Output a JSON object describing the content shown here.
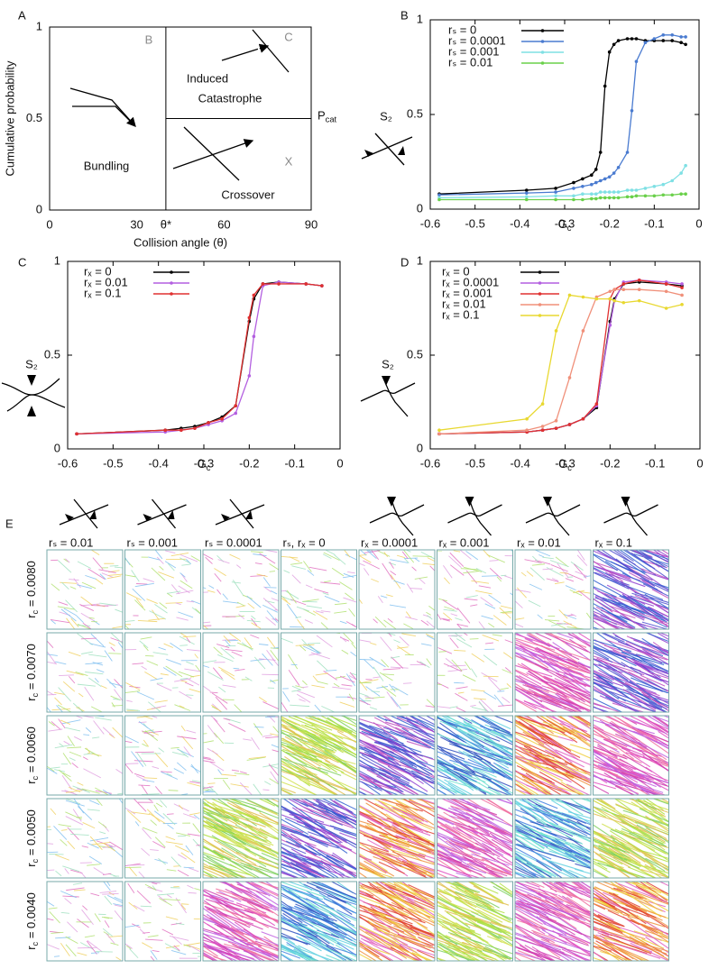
{
  "chart_data": [
    {
      "type": "schematic",
      "panel": "A",
      "xlabel": "Collision angle (θ)",
      "ylabel": "Cumulative probability",
      "xlim": [
        0,
        90
      ],
      "ylim": [
        0,
        1
      ],
      "xticks": [
        0,
        30,
        {
          "value": 40,
          "label": "θ*"
        },
        60,
        90
      ],
      "yticks": [
        0,
        0.5,
        1
      ],
      "regions": [
        {
          "letter": "B",
          "label": [
            "Bundling"
          ]
        },
        {
          "letter": "C",
          "label": [
            "Induced",
            "Catastrophe"
          ]
        },
        {
          "letter": "X",
          "label": [
            "Crossover"
          ]
        }
      ],
      "annotation": {
        "base": "P",
        "sub": "cat"
      }
    },
    {
      "type": "line",
      "panel": "B",
      "xlabel": {
        "base": "G",
        "sub": "c"
      },
      "ylabel": "S₂",
      "xlim": [
        -0.6,
        0
      ],
      "ylim": [
        0,
        1
      ],
      "xticks": [
        -0.6,
        -0.5,
        -0.4,
        -0.3,
        -0.2,
        -0.1,
        0
      ],
      "yticks": [
        0,
        0.5,
        1
      ],
      "x": [
        -0.58,
        -0.385,
        -0.32,
        -0.28,
        -0.26,
        -0.24,
        -0.23,
        -0.22,
        -0.21,
        -0.2,
        -0.19,
        -0.18,
        -0.16,
        -0.15,
        -0.14,
        -0.12,
        -0.1,
        -0.08,
        -0.06,
        -0.04,
        -0.03
      ],
      "series": [
        {
          "name": "rₛ = 0",
          "color": "#000000",
          "values": [
            0.08,
            0.1,
            0.11,
            0.14,
            0.16,
            0.18,
            0.21,
            0.3,
            0.65,
            0.83,
            0.87,
            0.89,
            0.9,
            0.9,
            0.9,
            0.89,
            0.89,
            0.89,
            0.89,
            0.88,
            0.87
          ]
        },
        {
          "name": "rₛ = 0.0001",
          "color": "#4a7bd0",
          "values": [
            0.075,
            0.085,
            0.09,
            0.11,
            0.12,
            0.13,
            0.14,
            0.15,
            0.16,
            0.17,
            0.19,
            0.22,
            0.3,
            0.52,
            0.78,
            0.88,
            0.9,
            0.92,
            0.92,
            0.91,
            0.91
          ]
        },
        {
          "name": "rₛ = 0.001",
          "color": "#7fe0e4",
          "values": [
            0.06,
            0.065,
            0.07,
            0.07,
            0.08,
            0.08,
            0.08,
            0.09,
            0.09,
            0.09,
            0.09,
            0.09,
            0.1,
            0.1,
            0.1,
            0.11,
            0.12,
            0.13,
            0.15,
            0.19,
            0.23
          ]
        },
        {
          "name": "rₛ = 0.01",
          "color": "#6ad04a",
          "values": [
            0.05,
            0.05,
            0.05,
            0.05,
            0.05,
            0.055,
            0.055,
            0.06,
            0.06,
            0.06,
            0.06,
            0.06,
            0.065,
            0.065,
            0.07,
            0.07,
            0.07,
            0.075,
            0.075,
            0.08,
            0.08
          ]
        }
      ]
    },
    {
      "type": "line",
      "panel": "C",
      "xlabel": {
        "base": "G",
        "sub": "c"
      },
      "ylabel": "S₂",
      "xlim": [
        -0.6,
        0
      ],
      "ylim": [
        0,
        1
      ],
      "xticks": [
        -0.6,
        -0.5,
        -0.4,
        -0.3,
        -0.2,
        -0.1,
        0
      ],
      "yticks": [
        0,
        0.5,
        1
      ],
      "x": [
        -0.58,
        -0.385,
        -0.35,
        -0.32,
        -0.29,
        -0.26,
        -0.23,
        -0.2,
        -0.19,
        -0.17,
        -0.135,
        -0.075,
        -0.04
      ],
      "series": [
        {
          "name": "rₓ = 0",
          "color": "#000000",
          "values": [
            0.08,
            0.1,
            0.11,
            0.12,
            0.14,
            0.17,
            0.23,
            0.68,
            0.8,
            0.88,
            0.89,
            0.88,
            0.87
          ]
        },
        {
          "name": "rₓ = 0.01",
          "color": "#b35fe0",
          "values": [
            0.08,
            0.09,
            0.1,
            0.11,
            0.13,
            0.15,
            0.19,
            0.39,
            0.6,
            0.87,
            0.89,
            0.88,
            0.87
          ]
        },
        {
          "name": "rₓ = 0.1",
          "color": "#e03030",
          "values": [
            0.08,
            0.1,
            0.1,
            0.11,
            0.14,
            0.16,
            0.23,
            0.7,
            0.82,
            0.88,
            0.88,
            0.88,
            0.87
          ]
        }
      ]
    },
    {
      "type": "line",
      "panel": "D",
      "xlabel": {
        "base": "G",
        "sub": "c"
      },
      "ylabel": "S₂",
      "xlim": [
        -0.6,
        0
      ],
      "ylim": [
        0,
        1
      ],
      "xticks": [
        -0.6,
        -0.5,
        -0.4,
        -0.3,
        -0.2,
        -0.1,
        0
      ],
      "yticks": [
        0,
        0.5,
        1
      ],
      "x": [
        -0.58,
        -0.385,
        -0.35,
        -0.32,
        -0.29,
        -0.26,
        -0.23,
        -0.2,
        -0.19,
        -0.17,
        -0.135,
        -0.075,
        -0.04
      ],
      "series": [
        {
          "name": "rₓ = 0",
          "color": "#000000",
          "values": [
            0.08,
            0.09,
            0.1,
            0.11,
            0.13,
            0.16,
            0.22,
            0.68,
            0.8,
            0.88,
            0.89,
            0.88,
            0.87
          ]
        },
        {
          "name": "rₓ = 0.0001",
          "color": "#b35fe0",
          "values": [
            0.08,
            0.09,
            0.1,
            0.11,
            0.13,
            0.16,
            0.23,
            0.66,
            0.79,
            0.89,
            0.9,
            0.89,
            0.88
          ]
        },
        {
          "name": "rₓ = 0.001",
          "color": "#e03030",
          "values": [
            0.08,
            0.09,
            0.1,
            0.11,
            0.13,
            0.16,
            0.24,
            0.8,
            0.85,
            0.88,
            0.9,
            0.88,
            0.86
          ]
        },
        {
          "name": "rₓ = 0.01",
          "color": "#f0907a",
          "values": [
            0.08,
            0.1,
            0.12,
            0.15,
            0.38,
            0.63,
            0.81,
            0.84,
            0.85,
            0.85,
            0.85,
            0.84,
            0.82
          ]
        },
        {
          "name": "rₓ = 0.1",
          "color": "#e8d830",
          "values": [
            0.1,
            0.16,
            0.24,
            0.63,
            0.82,
            0.81,
            0.8,
            0.8,
            0.79,
            0.78,
            0.79,
            0.75,
            0.77
          ]
        }
      ]
    }
  ],
  "grid": {
    "panel": "E",
    "columns": [
      "rₛ = 0.01",
      "rₛ = 0.001",
      "rₛ = 0.0001",
      "rₛ, rₓ = 0",
      "rₓ = 0.0001",
      "rₓ = 0.001",
      "rₓ = 0.01",
      "rₓ = 0.1"
    ],
    "rows": [
      {
        "base": "r",
        "sub": "c",
        "rest": " = 0.0080"
      },
      {
        "base": "r",
        "sub": "c",
        "rest": " = 0.0070"
      },
      {
        "base": "r",
        "sub": "c",
        "rest": " = 0.0060"
      },
      {
        "base": "r",
        "sub": "c",
        "rest": " = 0.0050"
      },
      {
        "base": "r",
        "sub": "c",
        "rest": " = 0.0040"
      }
    ]
  }
}
